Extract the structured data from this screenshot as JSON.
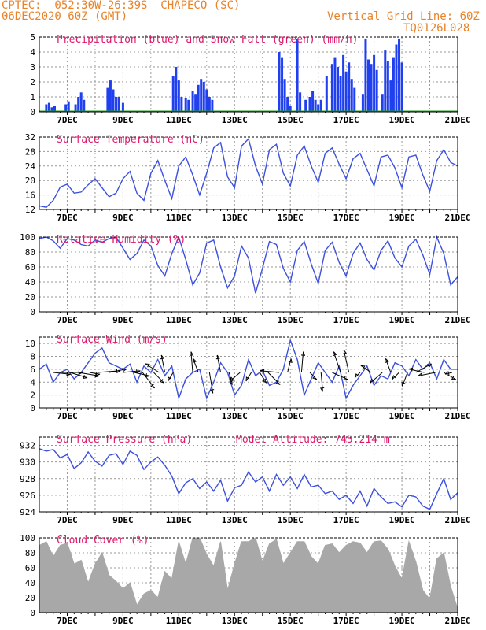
{
  "header": {
    "line1": "CPTEC:  052:30W-26:39S  CHAPECO (SC)",
    "line2_left": "06DEC2020 60Z (GMT)",
    "line2_right": "Vertical Grid Line: 60Z",
    "line3_right": "TQ0126L028"
  },
  "x_ticks": [
    "7DEC",
    "9DEC",
    "11DEC",
    "13DEC",
    "15DEC",
    "17DEC",
    "19DEC",
    "21DEC"
  ],
  "colors": {
    "line": "#3c50dc",
    "precip": "#2040f0",
    "snow": "#20a020",
    "cloud": "#a8a8a8",
    "title": "#e0186a",
    "header": "#e8832a"
  },
  "chart_data": [
    {
      "type": "bar",
      "title": "Precipitation (blue) and Snow Fall (green) (mm/h)",
      "ylim": [
        0,
        5
      ],
      "yticks": [
        0,
        1,
        2,
        3,
        4,
        5
      ],
      "x_range_days": [
        6.0,
        21.0
      ],
      "series": [
        {
          "name": "Precipitation",
          "x": [
            6.25,
            6.35,
            6.45,
            6.55,
            6.95,
            7.05,
            7.3,
            7.4,
            7.5,
            7.6,
            8.45,
            8.55,
            8.65,
            8.75,
            8.85,
            9.0,
            10.8,
            10.9,
            11.0,
            11.1,
            11.25,
            11.35,
            11.5,
            11.6,
            11.7,
            11.8,
            11.9,
            12.0,
            12.1,
            12.2,
            14.6,
            14.7,
            14.8,
            14.9,
            15.0,
            15.25,
            15.35,
            15.55,
            15.7,
            15.8,
            15.9,
            16.0,
            16.1,
            16.3,
            16.5,
            16.6,
            16.7,
            16.8,
            16.9,
            17.0,
            17.1,
            17.2,
            17.3,
            17.6,
            17.7,
            17.8,
            17.9,
            18.0,
            18.1,
            18.3,
            18.4,
            18.5,
            18.6,
            18.7,
            18.8,
            18.9,
            19.0
          ],
          "values": [
            0.5,
            0.6,
            0.3,
            0.4,
            0.5,
            0.7,
            0.5,
            1.0,
            1.3,
            0.8,
            1.6,
            2.1,
            1.5,
            1.0,
            1.0,
            0.6,
            2.4,
            3.0,
            2.1,
            1.0,
            0.9,
            0.8,
            1.4,
            1.2,
            1.8,
            2.2,
            2.0,
            1.5,
            1.0,
            0.8,
            4.0,
            3.6,
            2.2,
            1.0,
            0.4,
            4.9,
            1.3,
            0.8,
            1.0,
            1.4,
            0.8,
            0.5,
            0.8,
            2.4,
            3.2,
            3.6,
            3.0,
            2.4,
            3.8,
            2.7,
            3.3,
            2.2,
            1.6,
            1.2,
            4.9,
            3.5,
            3.2,
            3.8,
            2.8,
            1.2,
            4.1,
            3.4,
            2.1,
            3.6,
            4.5,
            4.9,
            3.3
          ]
        },
        {
          "name": "Snow Fall",
          "x": [],
          "values": []
        }
      ]
    },
    {
      "type": "line",
      "title": "Surface Temperature (nC)",
      "ylim": [
        12,
        32
      ],
      "yticks": [
        12,
        16,
        20,
        24,
        28,
        32
      ],
      "x": [
        6.0,
        6.25,
        6.5,
        6.75,
        7.0,
        7.25,
        7.5,
        7.75,
        8.0,
        8.25,
        8.5,
        8.75,
        9.0,
        9.25,
        9.5,
        9.75,
        10.0,
        10.25,
        10.5,
        10.75,
        11.0,
        11.25,
        11.5,
        11.75,
        12.0,
        12.25,
        12.5,
        12.75,
        13.0,
        13.25,
        13.5,
        13.75,
        14.0,
        14.25,
        14.5,
        14.75,
        15.0,
        15.25,
        15.5,
        15.75,
        16.0,
        16.25,
        16.5,
        16.75,
        17.0,
        17.25,
        17.5,
        17.75,
        18.0,
        18.25,
        18.5,
        18.75,
        19.0,
        19.25,
        19.5,
        19.75,
        20.0,
        20.25,
        20.5,
        20.75,
        21.0
      ],
      "series": [
        {
          "values": [
            13.0,
            12.6,
            14.5,
            18.2,
            19.0,
            16.5,
            16.8,
            18.8,
            20.5,
            18.0,
            15.5,
            16.5,
            20.5,
            22.5,
            16.5,
            14.5,
            22.0,
            25.5,
            20.0,
            15.0,
            24.0,
            26.5,
            21.5,
            16.0,
            22.0,
            29.0,
            30.5,
            21.0,
            18.0,
            29.5,
            31.5,
            24.0,
            19.0,
            28.5,
            30.0,
            22.0,
            18.5,
            27.0,
            29.5,
            24.0,
            19.5,
            27.5,
            29.0,
            24.5,
            20.5,
            26.0,
            27.5,
            23.0,
            18.5,
            26.5,
            27.0,
            23.5,
            18.0,
            26.5,
            27.0,
            21.5,
            17.0,
            25.5,
            28.5,
            25.0,
            24.0
          ]
        }
      ]
    },
    {
      "type": "line",
      "title": "Relative Humidity (%)",
      "ylim": [
        0,
        100
      ],
      "yticks": [
        0,
        20,
        40,
        60,
        80,
        100
      ],
      "x": [
        6.0,
        6.25,
        6.5,
        6.75,
        7.0,
        7.25,
        7.5,
        7.75,
        8.0,
        8.25,
        8.5,
        8.75,
        9.0,
        9.25,
        9.5,
        9.75,
        10.0,
        10.25,
        10.5,
        10.75,
        11.0,
        11.25,
        11.5,
        11.75,
        12.0,
        12.25,
        12.5,
        12.75,
        13.0,
        13.25,
        13.5,
        13.75,
        14.0,
        14.25,
        14.5,
        14.75,
        15.0,
        15.25,
        15.5,
        15.75,
        16.0,
        16.25,
        16.5,
        16.75,
        17.0,
        17.25,
        17.5,
        17.75,
        18.0,
        18.25,
        18.5,
        18.75,
        19.0,
        19.25,
        19.5,
        19.75,
        20.0,
        20.25,
        20.5,
        20.75,
        21.0
      ],
      "series": [
        {
          "values": [
            98,
            100,
            95,
            85,
            98,
            96,
            90,
            88,
            96,
            93,
            98,
            100,
            85,
            70,
            78,
            96,
            88,
            62,
            48,
            78,
            100,
            70,
            36,
            52,
            92,
            96,
            60,
            32,
            48,
            88,
            72,
            25,
            58,
            94,
            90,
            58,
            40,
            82,
            94,
            64,
            38,
            82,
            93,
            66,
            48,
            78,
            92,
            70,
            56,
            82,
            95,
            72,
            60,
            88,
            97,
            76,
            50,
            100,
            78,
            36,
            47
          ]
        }
      ]
    },
    {
      "type": "line",
      "title": "Surface Wind (m/s)",
      "ylim": [
        0,
        11
      ],
      "yticks": [
        0,
        2,
        4,
        6,
        8,
        10
      ],
      "x": [
        6.0,
        6.25,
        6.5,
        6.75,
        7.0,
        7.25,
        7.5,
        7.75,
        8.0,
        8.25,
        8.5,
        8.75,
        9.0,
        9.25,
        9.5,
        9.75,
        10.0,
        10.25,
        10.5,
        10.75,
        11.0,
        11.25,
        11.5,
        11.75,
        12.0,
        12.25,
        12.5,
        12.75,
        13.0,
        13.25,
        13.5,
        13.75,
        14.0,
        14.25,
        14.5,
        14.75,
        15.0,
        15.25,
        15.5,
        15.75,
        16.0,
        16.25,
        16.5,
        16.75,
        17.0,
        17.25,
        17.5,
        17.75,
        18.0,
        18.25,
        18.5,
        18.75,
        19.0,
        19.25,
        19.5,
        19.75,
        20.0,
        20.25,
        20.5,
        20.75,
        21.0
      ],
      "series": [
        {
          "values": [
            6.0,
            6.8,
            4.0,
            5.5,
            6.0,
            4.5,
            5.5,
            7.0,
            8.5,
            9.3,
            7.0,
            6.5,
            6.0,
            6.8,
            4.0,
            6.5,
            5.5,
            7.5,
            5.0,
            6.5,
            1.5,
            4.5,
            5.5,
            6.0,
            1.5,
            4.0,
            7.0,
            5.5,
            2.0,
            3.5,
            7.5,
            5.0,
            5.8,
            3.5,
            4.0,
            6.0,
            10.5,
            7.5,
            2.0,
            4.5,
            7.0,
            5.5,
            4.0,
            6.5,
            1.5,
            3.5,
            5.0,
            6.5,
            3.5,
            5.0,
            4.5,
            7.0,
            6.5,
            5.0,
            7.5,
            6.0,
            7.0,
            4.5,
            7.5,
            6.0,
            6.0
          ]
        }
      ],
      "wind_vectors": [
        {
          "day": 6.5,
          "u": 1.0,
          "v": -0.1
        },
        {
          "day": 6.8,
          "u": 1.2,
          "v": 0.0
        },
        {
          "day": 7.1,
          "u": 1.0,
          "v": -0.3
        },
        {
          "day": 7.4,
          "u": 1.2,
          "v": -0.2
        },
        {
          "day": 7.8,
          "u": 0.6,
          "v": -0.1
        },
        {
          "day": 8.1,
          "u": 1.3,
          "v": 0.1
        },
        {
          "day": 8.5,
          "u": 1.0,
          "v": 0.2
        },
        {
          "day": 9.0,
          "u": 1.0,
          "v": 0.1
        },
        {
          "day": 9.4,
          "u": 0.9,
          "v": -0.2
        },
        {
          "day": 9.7,
          "u": 0.7,
          "v": -0.9
        },
        {
          "day": 10.1,
          "u": 0.6,
          "v": -0.6
        },
        {
          "day": 10.3,
          "u": -0.8,
          "v": 0.5
        },
        {
          "day": 10.5,
          "u": -0.2,
          "v": 1.0
        },
        {
          "day": 10.8,
          "u": -0.3,
          "v": -0.5
        },
        {
          "day": 11.5,
          "u": -0.1,
          "v": 1.2
        },
        {
          "day": 11.7,
          "u": -0.3,
          "v": 0.8
        },
        {
          "day": 12.1,
          "u": 0.2,
          "v": -1.2
        },
        {
          "day": 12.5,
          "u": -0.2,
          "v": 1.0
        },
        {
          "day": 12.8,
          "u": 0.2,
          "v": -0.7
        },
        {
          "day": 13.2,
          "u": -0.6,
          "v": -0.5
        },
        {
          "day": 13.6,
          "u": -0.3,
          "v": -0.5
        },
        {
          "day": 13.9,
          "u": 0.4,
          "v": -0.6
        },
        {
          "day": 14.2,
          "u": 0.7,
          "v": -0.7
        },
        {
          "day": 14.6,
          "u": -1.1,
          "v": 0.1
        },
        {
          "day": 14.9,
          "u": 0.2,
          "v": 0.8
        },
        {
          "day": 15.4,
          "u": 0.1,
          "v": 1.2
        },
        {
          "day": 15.7,
          "u": 0.4,
          "v": -0.4
        },
        {
          "day": 16.1,
          "u": 0.1,
          "v": -1.1
        },
        {
          "day": 16.5,
          "u": 0.9,
          "v": -0.4
        },
        {
          "day": 16.8,
          "u": -0.4,
          "v": 1.2
        },
        {
          "day": 17.1,
          "u": -0.3,
          "v": 1.3
        },
        {
          "day": 17.5,
          "u": -0.3,
          "v": -0.3
        },
        {
          "day": 17.9,
          "u": -0.6,
          "v": 0.4
        },
        {
          "day": 18.3,
          "u": -0.7,
          "v": -0.6
        },
        {
          "day": 18.6,
          "u": -0.3,
          "v": 0.8
        },
        {
          "day": 18.9,
          "u": -0.4,
          "v": -0.4
        },
        {
          "day": 19.2,
          "u": -0.3,
          "v": -0.8
        },
        {
          "day": 19.5,
          "u": 0.9,
          "v": 0.5
        },
        {
          "day": 19.8,
          "u": -0.9,
          "v": 0.2
        },
        {
          "day": 20.2,
          "u": -1.0,
          "v": -0.2
        },
        {
          "day": 20.5,
          "u": 0.7,
          "v": -0.4
        },
        {
          "day": 20.8,
          "u": -0.4,
          "v": -0.1
        }
      ]
    },
    {
      "type": "line",
      "title": "Surface Pressure (hPa)",
      "annotation": "Model Altitude: 745.214 m",
      "ylim": [
        924,
        933
      ],
      "yticks": [
        924,
        926,
        928,
        930,
        932
      ],
      "x": [
        6.0,
        6.25,
        6.5,
        6.75,
        7.0,
        7.25,
        7.5,
        7.75,
        8.0,
        8.25,
        8.5,
        8.75,
        9.0,
        9.25,
        9.5,
        9.75,
        10.0,
        10.25,
        10.5,
        10.75,
        11.0,
        11.25,
        11.5,
        11.75,
        12.0,
        12.25,
        12.5,
        12.75,
        13.0,
        13.25,
        13.5,
        13.75,
        14.0,
        14.25,
        14.5,
        14.75,
        15.0,
        15.25,
        15.5,
        15.75,
        16.0,
        16.25,
        16.5,
        16.75,
        17.0,
        17.25,
        17.5,
        17.75,
        18.0,
        18.25,
        18.5,
        18.75,
        19.0,
        19.25,
        19.5,
        19.75,
        20.0,
        20.25,
        20.5,
        20.75,
        21.0
      ],
      "series": [
        {
          "values": [
            931.6,
            931.3,
            931.5,
            930.5,
            930.9,
            929.2,
            929.9,
            931.2,
            930.1,
            929.5,
            930.8,
            931.0,
            929.7,
            931.3,
            930.8,
            929.1,
            930.0,
            930.6,
            929.6,
            928.3,
            926.2,
            927.5,
            928.0,
            926.8,
            927.6,
            926.5,
            927.8,
            925.3,
            926.9,
            927.2,
            928.8,
            927.6,
            928.2,
            926.5,
            928.5,
            927.2,
            928.2,
            926.8,
            928.5,
            927.0,
            927.2,
            926.2,
            926.5,
            925.5,
            926.0,
            925.0,
            926.5,
            924.7,
            926.8,
            925.8,
            925.0,
            925.2,
            924.6,
            926.0,
            925.8,
            924.7,
            924.3,
            926.2,
            928.0,
            925.5,
            926.3
          ]
        }
      ]
    },
    {
      "type": "area",
      "title": "Cloud Cover (%)",
      "ylim": [
        0,
        100
      ],
      "yticks": [
        0,
        20,
        40,
        60,
        80,
        100
      ],
      "x": [
        6.0,
        6.25,
        6.5,
        6.75,
        7.0,
        7.25,
        7.5,
        7.75,
        8.0,
        8.25,
        8.5,
        8.75,
        9.0,
        9.25,
        9.5,
        9.75,
        10.0,
        10.25,
        10.5,
        10.75,
        11.0,
        11.25,
        11.5,
        11.75,
        12.0,
        12.25,
        12.5,
        12.75,
        13.0,
        13.25,
        13.5,
        13.75,
        14.0,
        14.25,
        14.5,
        14.75,
        15.0,
        15.25,
        15.5,
        15.75,
        16.0,
        16.25,
        16.5,
        16.75,
        17.0,
        17.25,
        17.5,
        17.75,
        18.0,
        18.25,
        18.5,
        18.75,
        19.0,
        19.25,
        19.5,
        19.75,
        20.0,
        20.25,
        20.5,
        20.75,
        21.0
      ],
      "series": [
        {
          "values": [
            90,
            95,
            75,
            90,
            93,
            65,
            70,
            40,
            65,
            80,
            50,
            42,
            32,
            40,
            10,
            25,
            30,
            20,
            55,
            45,
            95,
            65,
            100,
            100,
            78,
            62,
            95,
            30,
            65,
            95,
            95,
            100,
            68,
            92,
            98,
            65,
            80,
            95,
            95,
            75,
            65,
            90,
            92,
            80,
            90,
            95,
            93,
            80,
            95,
            96,
            85,
            62,
            45,
            95,
            68,
            30,
            18,
            72,
            80,
            35,
            5
          ]
        }
      ]
    }
  ]
}
